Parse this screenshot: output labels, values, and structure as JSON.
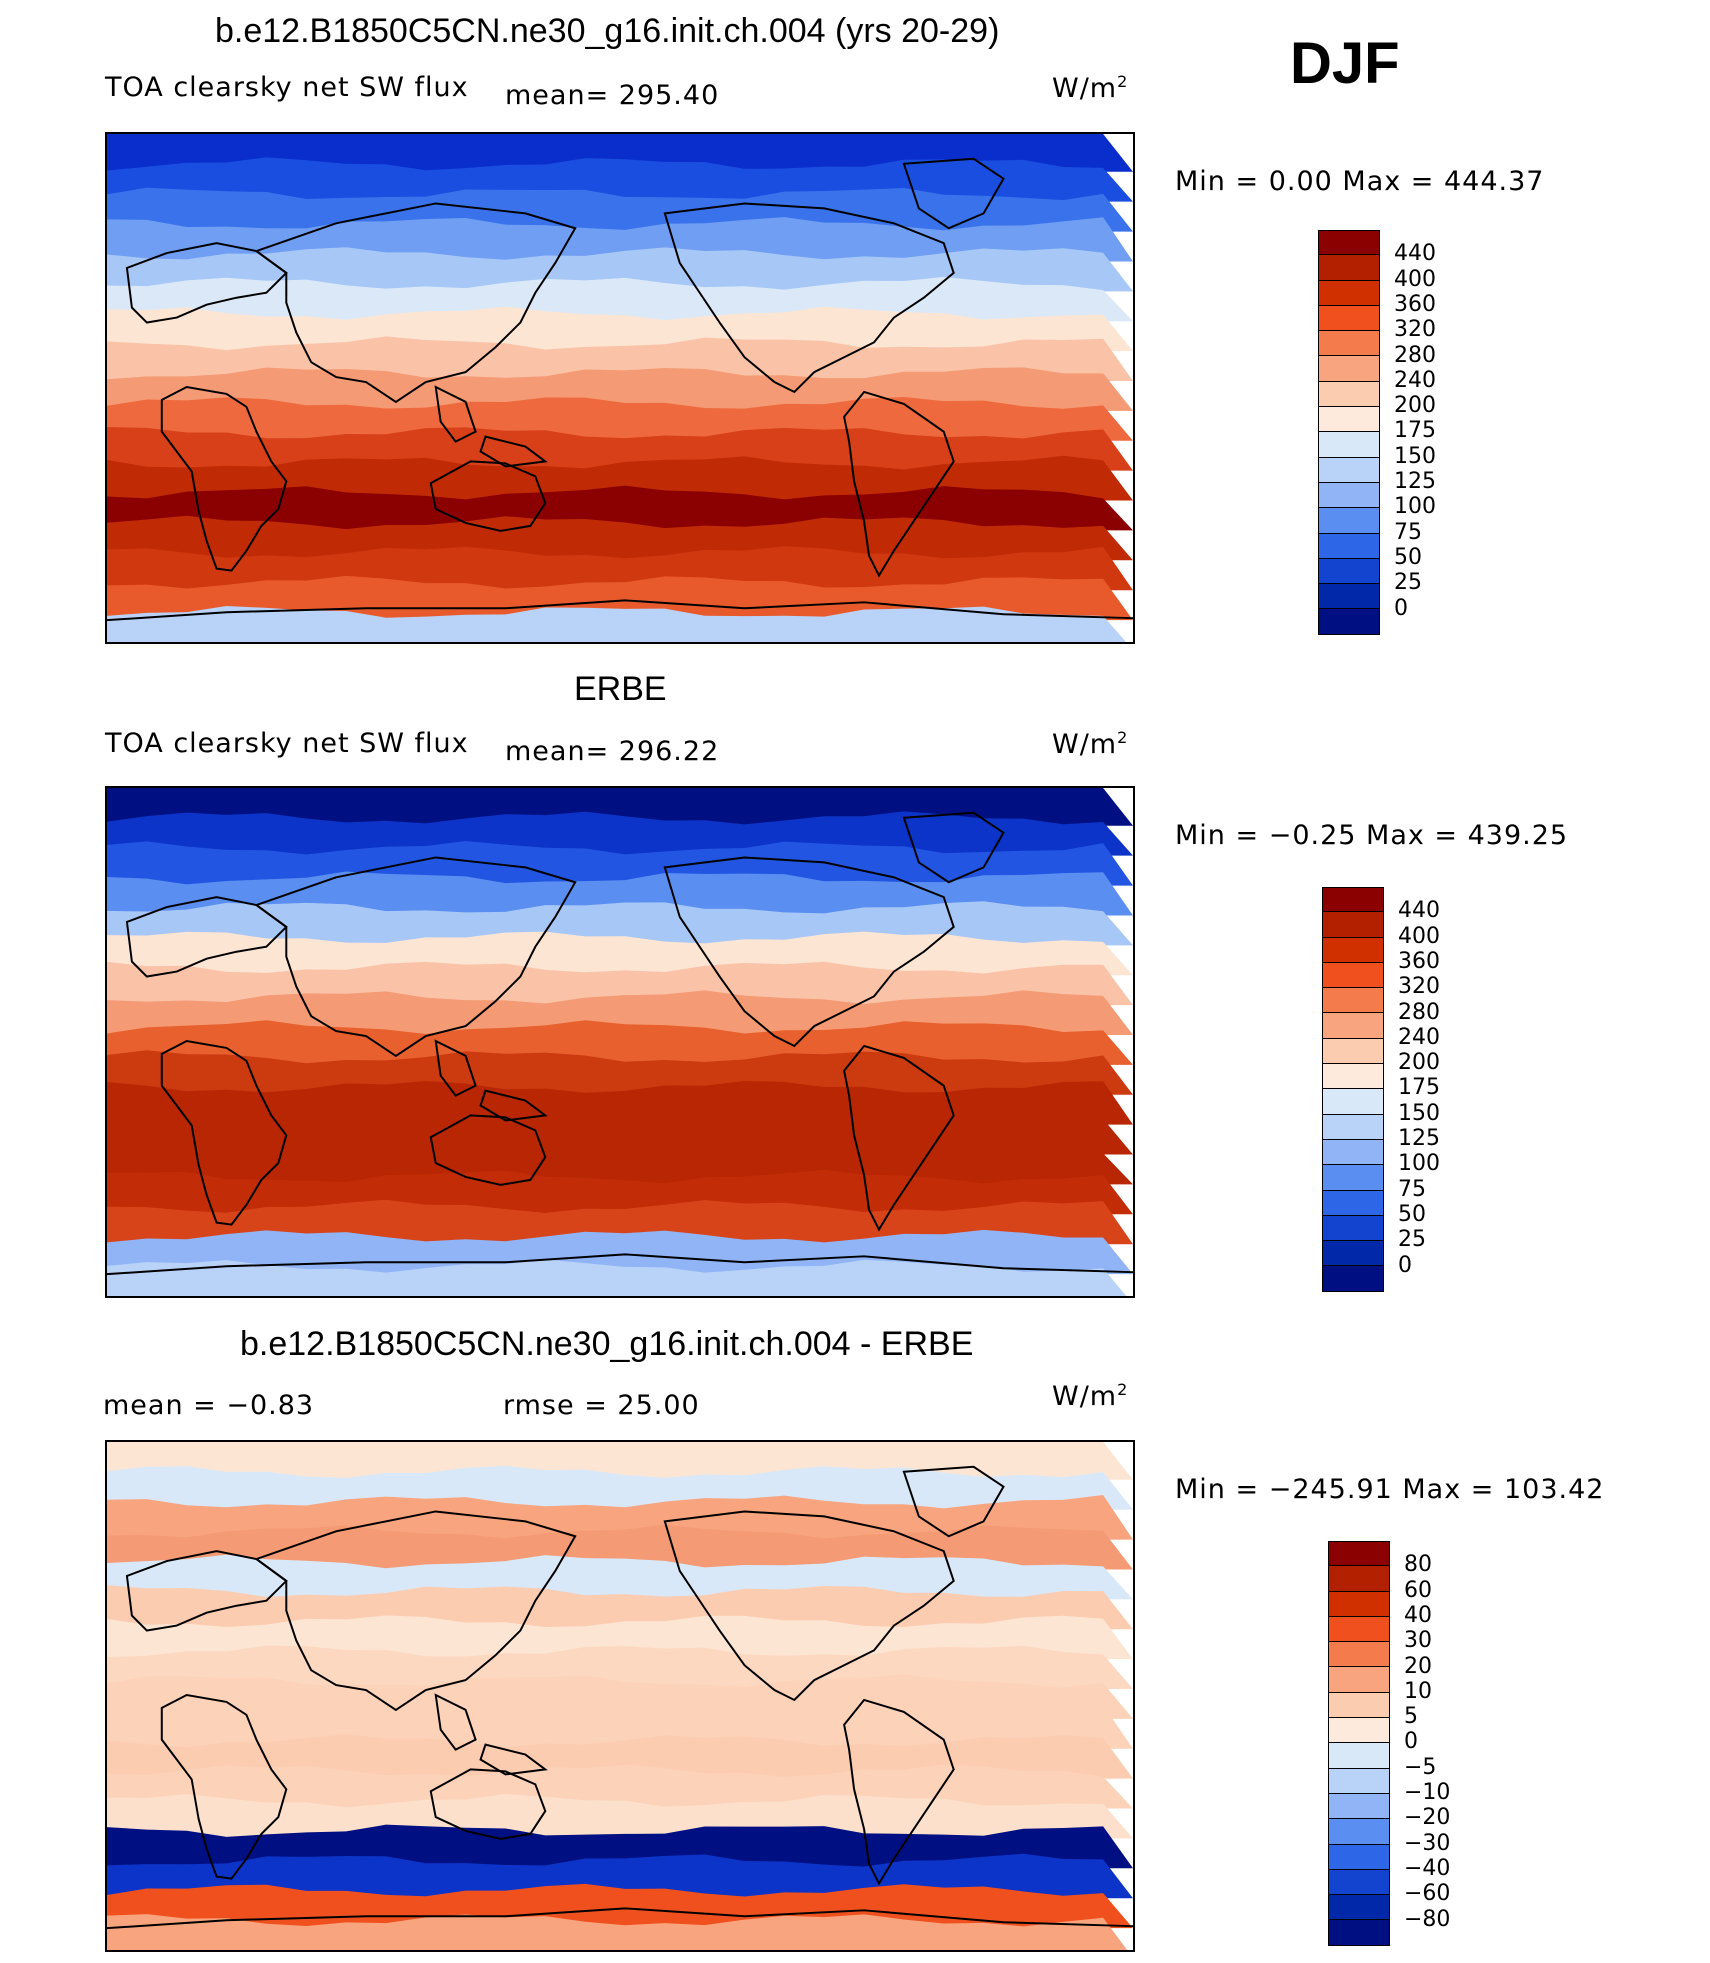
{
  "season": "DJF",
  "panels": [
    {
      "id": "model",
      "title": "b.e12.B1850C5CN.ne30_g16.init.ch.004 (yrs 20-29)",
      "left_label": "TOA clearsky net SW flux",
      "mean_label": "mean=  295.40",
      "units_base": "W/m",
      "units_exp": "2",
      "minmax": "Min  =     0.00  Max  =  444.37",
      "colorbar": {
        "colors": [
          "#8b0000",
          "#b22000",
          "#d03000",
          "#f0501e",
          "#f47c4c",
          "#f8a47e",
          "#fcccb0",
          "#fdeadc",
          "#d8e8f8",
          "#b8d2f8",
          "#90b4f6",
          "#5a8ef0",
          "#2e66e8",
          "#1244d0",
          "#0028a8",
          "#001082"
        ],
        "labels": [
          "440",
          "400",
          "360",
          "320",
          "280",
          "240",
          "200",
          "175",
          "150",
          "125",
          "100",
          "75",
          "50",
          "25",
          "0"
        ]
      },
      "bands": [
        "#0a2ecc",
        "#1a4ee0",
        "#3a72ec",
        "#6f9ef2",
        "#a7c7f6",
        "#dbe8f8",
        "#fde5d4",
        "#fac3a8",
        "#f49a74",
        "#ee6a3e",
        "#d8401a",
        "#c02a04",
        "#8b0000",
        "#c02a04",
        "#d03810",
        "#e85a2c",
        "#b8d2f8"
      ]
    },
    {
      "id": "obs",
      "title": "ERBE",
      "left_label": "TOA clearsky net SW flux",
      "mean_label": "mean=  296.22",
      "units_base": "W/m",
      "units_exp": "2",
      "minmax": "Min  =   −0.25  Max  =  439.25",
      "colorbar": {
        "colors": [
          "#8b0000",
          "#b22000",
          "#d03000",
          "#f0501e",
          "#f47c4c",
          "#f8a47e",
          "#fcccb0",
          "#fdeadc",
          "#d8e8f8",
          "#b8d2f8",
          "#90b4f6",
          "#5a8ef0",
          "#2e66e8",
          "#1244d0",
          "#0028a8",
          "#001082"
        ],
        "labels": [
          "440",
          "400",
          "360",
          "320",
          "280",
          "240",
          "200",
          "175",
          "150",
          "125",
          "100",
          "75",
          "50",
          "25",
          "0"
        ]
      },
      "bands": [
        "#001082",
        "#0c34c8",
        "#2256e2",
        "#5a8ef0",
        "#a7c7f6",
        "#fde5d4",
        "#fac3a8",
        "#f49a74",
        "#e8602e",
        "#cc3a10",
        "#b82604",
        "#b82604",
        "#b82604",
        "#c22c06",
        "#d8441a",
        "#90b4f6",
        "#b8d2f8"
      ]
    },
    {
      "id": "diff",
      "title": "b.e12.B1850C5CN.ne30_g16.init.ch.004 - ERBE",
      "left_label": "mean  =   −0.83",
      "mean_label": "rmse  =   25.00",
      "units_base": "W/m",
      "units_exp": "2",
      "minmax": "Min  = −245.91  Max  =  103.42",
      "colorbar": {
        "colors": [
          "#8b0000",
          "#b22000",
          "#d03000",
          "#f0501e",
          "#f47c4c",
          "#f8a47e",
          "#fcccb0",
          "#fdeadc",
          "#d8e8f8",
          "#b8d2f8",
          "#90b4f6",
          "#5a8ef0",
          "#2e66e8",
          "#1244d0",
          "#0028a8",
          "#001082"
        ],
        "labels": [
          "80",
          "60",
          "40",
          "30",
          "20",
          "10",
          "5",
          "0",
          "−5",
          "−10",
          "−20",
          "−30",
          "−40",
          "−60",
          "−80"
        ]
      },
      "bands": [
        "#fde5d4",
        "#d8e8f8",
        "#f8a47e",
        "#f49a74",
        "#d8e8f8",
        "#fcccb0",
        "#fde5d4",
        "#fcd8c0",
        "#fcd2b8",
        "#fcd2b8",
        "#fcccb0",
        "#fcd2b8",
        "#fde0cc",
        "#001082",
        "#0c34c8",
        "#f0501e",
        "#f8a47e"
      ]
    }
  ]
}
